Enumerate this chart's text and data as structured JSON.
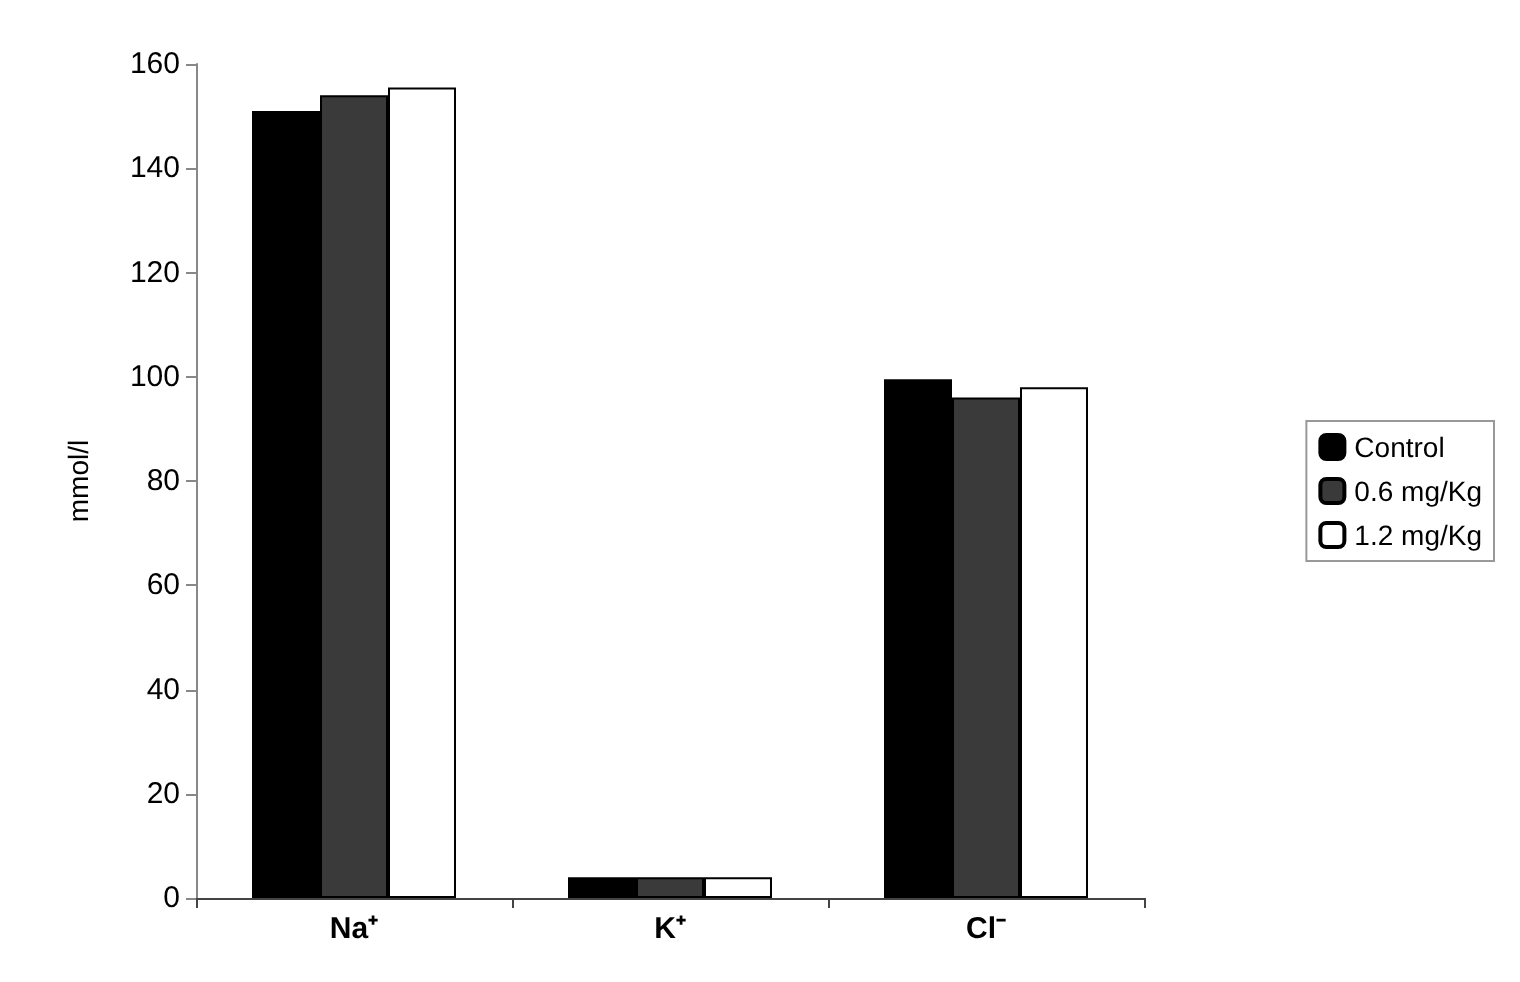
{
  "chart_data": {
    "type": "bar",
    "ylabel": "mmol/l",
    "categories": [
      "Na⁺",
      "K⁺",
      "Cl⁻"
    ],
    "series": [
      {
        "name": "Control",
        "color": "#000000",
        "values": [
          151,
          4,
          99.5
        ]
      },
      {
        "name": "0.6 mg/Kg",
        "color": "#3a3a3a",
        "values": [
          154,
          4,
          96
        ]
      },
      {
        "name": "1.2 mg/Kg",
        "color": "#ffffff",
        "values": [
          155.5,
          4,
          98
        ]
      }
    ],
    "ylim": [
      0,
      160
    ],
    "yticks": [
      0,
      20,
      40,
      60,
      80,
      100,
      120,
      140,
      160
    ],
    "grid": false,
    "legend": "right"
  }
}
